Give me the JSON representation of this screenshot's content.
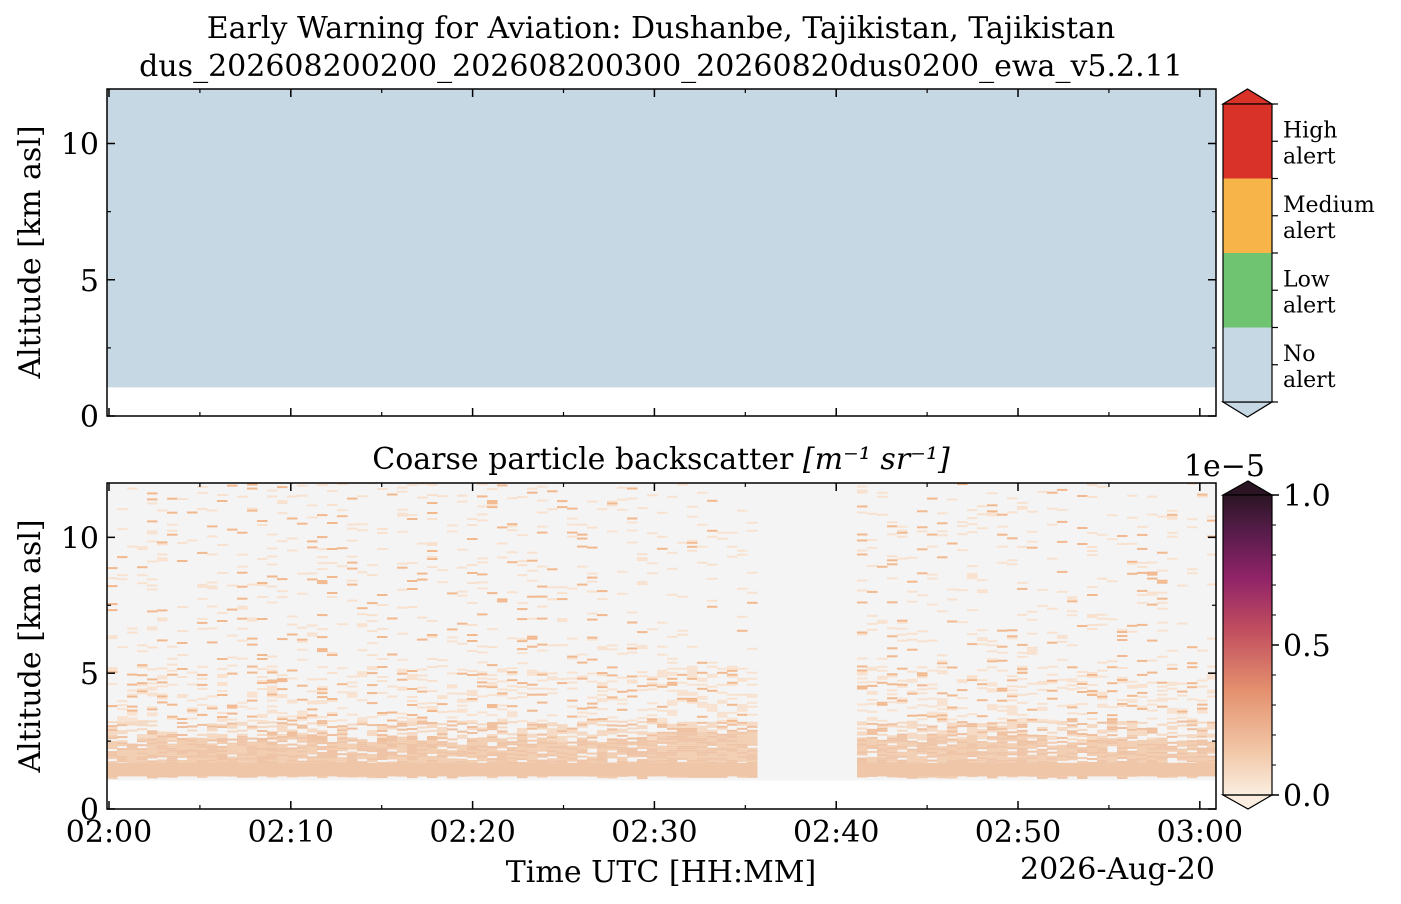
{
  "figure": {
    "title_line1": "Early Warning for Aviation: Dushanbe, Tajikistan, Tajikistan",
    "title_line2": "dus_202608200200_202608200300_20260820dus0200_ewa_v5.2.11",
    "date_label": "2026-Aug-20"
  },
  "chart_data": [
    {
      "type": "heatmap",
      "name": "alert-panel",
      "ylabel": "Altitude [km asl]",
      "ylim": [
        0,
        12
      ],
      "yticks": [
        "0",
        "5",
        "10"
      ],
      "x_range_minutes": [
        0,
        61
      ],
      "fill_bottom_km": 1.05,
      "fill_top_km": 12,
      "value_everywhere": "No alert",
      "colorbar": {
        "categories": [
          {
            "label": "No\nalert",
            "color": "#c6d8e4"
          },
          {
            "label": "Low\nalert",
            "color": "#6fc472"
          },
          {
            "label": "Medium\nalert",
            "color": "#f7b449"
          },
          {
            "label": "High\nalert",
            "color": "#d93228"
          }
        ]
      }
    },
    {
      "type": "heatmap",
      "name": "backscatter-panel",
      "title": "Coarse particle backscatter",
      "title_units": "[m⁻¹ sr⁻¹]",
      "xlabel": "Time UTC [HH:MM]",
      "ylabel": "Altitude [km asl]",
      "ylim": [
        0,
        12
      ],
      "yticks": [
        "0",
        "5",
        "10"
      ],
      "xticks": [
        "02:00",
        "02:10",
        "02:20",
        "02:30",
        "02:40",
        "02:50",
        "03:00"
      ],
      "x_range_minutes": [
        0,
        61
      ],
      "no_data_interval_minutes": [
        35.5,
        41.0
      ],
      "dense_layer_km": [
        1.2,
        2.4
      ],
      "colorbar": {
        "min": 0.0,
        "max": 1.0,
        "scale_label": "1e−5",
        "ticks": [
          "0.0",
          "0.5",
          "1.0"
        ],
        "colors": [
          "#fbeee0",
          "#f0c8a8",
          "#e08a6a",
          "#c04d5e",
          "#8c2168",
          "#561c4a",
          "#2b1524"
        ]
      }
    }
  ]
}
